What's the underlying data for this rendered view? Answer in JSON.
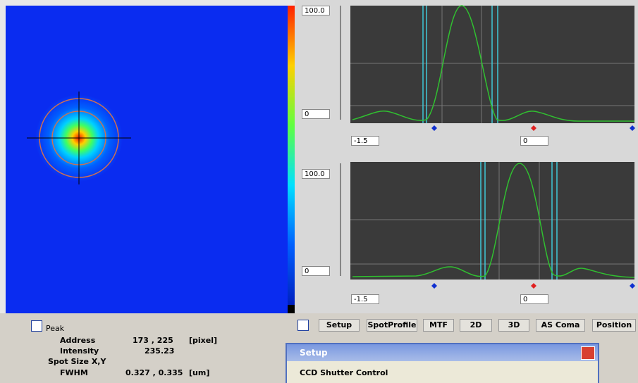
{
  "profile_x": {
    "y_max": "100.0",
    "y_min": "0",
    "x_left": "-1.5",
    "x_right": "0"
  },
  "profile_y": {
    "y_max": "100.0",
    "y_min": "0",
    "x_left": "-1.5",
    "x_right": "0"
  },
  "measurements": {
    "title": "Peak",
    "address": {
      "label": "Address",
      "value": "173 , 225",
      "unit": "[pixel]"
    },
    "intensity": {
      "label": "Intensity",
      "value": "235.23"
    },
    "spot_size": "Spot Size X,Y",
    "fwhm": {
      "label": "FWHM",
      "value": "0.327 , 0.335",
      "unit": "[um]"
    }
  },
  "tabs": [
    "Setup",
    "SpotProfile",
    "MTF",
    "2D",
    "3D",
    "AS Coma",
    "Position"
  ],
  "dialog": {
    "title": "Setup",
    "group": "CCD Shutter Control"
  }
}
